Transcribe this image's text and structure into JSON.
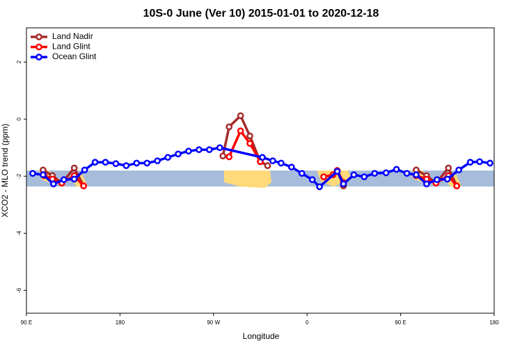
{
  "chart_data": {
    "type": "line",
    "title": "10S-0 June (Ver 10)   2015-01-01 to 2020-12-18",
    "x_label": "Longitude",
    "y_label": "XCO2 - MLO trend (ppm)",
    "xlim": [
      90,
      540
    ],
    "xticks": [
      {
        "value": 90,
        "label": "90 E"
      },
      180,
      {
        "value": 270,
        "label": "90 W"
      },
      {
        "value": 360,
        "label": "0"
      },
      {
        "value": 450,
        "label": "90 E"
      },
      {
        "value": 540,
        "label": "180"
      }
    ],
    "ylim": [
      -6.8,
      3.2
    ],
    "yticks": [
      -6,
      -4,
      -2,
      0,
      2
    ],
    "legend": "top-left",
    "series": [
      {
        "name": "Land Nadir",
        "color": "#a52a2a",
        "x": [
          106,
          115,
          124,
          136,
          145,
          null,
          279,
          285,
          296,
          305,
          315,
          322,
          null,
          389,
          395,
          null,
          465,
          475,
          484,
          496,
          504
        ],
        "values": [
          -1.78,
          -1.98,
          -2.24,
          -1.71,
          -2.34,
          null,
          -1.29,
          -0.27,
          0.12,
          -0.59,
          -1.49,
          -1.63,
          null,
          -1.8,
          -2.34,
          null,
          -1.78,
          -1.98,
          -2.24,
          -1.71,
          -2.34
        ]
      },
      {
        "name": "Land Glint",
        "color": "#ff0000",
        "x": [
          107,
          115,
          124,
          136,
          145,
          null,
          285,
          296,
          305,
          315,
          null,
          376,
          385,
          389,
          395,
          null,
          465,
          475,
          484,
          496,
          504
        ],
        "values": [
          -1.98,
          -2.1,
          -2.24,
          -1.98,
          -2.34,
          null,
          -1.32,
          -0.41,
          -0.85,
          -1.49,
          null,
          -2.02,
          -1.95,
          -1.8,
          -2.22,
          null,
          -1.98,
          -2.1,
          -2.24,
          -1.98,
          -2.34
        ]
      },
      {
        "name": "Ocean Glint",
        "color": "#0000ff",
        "x": [
          96,
          106,
          116,
          126,
          136,
          146,
          156,
          166,
          176,
          186,
          196,
          206,
          216,
          226,
          236,
          246,
          256,
          266,
          276,
          317,
          327,
          335,
          345,
          355,
          365,
          372,
          389,
          395,
          405,
          415,
          425,
          436,
          446,
          456,
          465,
          475,
          485,
          495,
          506,
          517,
          526,
          536
        ],
        "values": [
          -1.9,
          -1.95,
          -2.27,
          -2.12,
          -2.1,
          -1.78,
          -1.51,
          -1.51,
          -1.56,
          -1.63,
          -1.54,
          -1.54,
          -1.46,
          -1.34,
          -1.22,
          -1.12,
          -1.07,
          -1.07,
          -1.0,
          -1.34,
          -1.46,
          -1.54,
          -1.68,
          -1.9,
          -2.12,
          -2.37,
          -1.83,
          -2.27,
          -1.95,
          -2.02,
          -1.9,
          -1.88,
          -1.76,
          -1.9,
          -1.95,
          -2.27,
          -2.12,
          -2.1,
          -1.78,
          -1.51,
          -1.49,
          -1.54
        ]
      }
    ]
  }
}
